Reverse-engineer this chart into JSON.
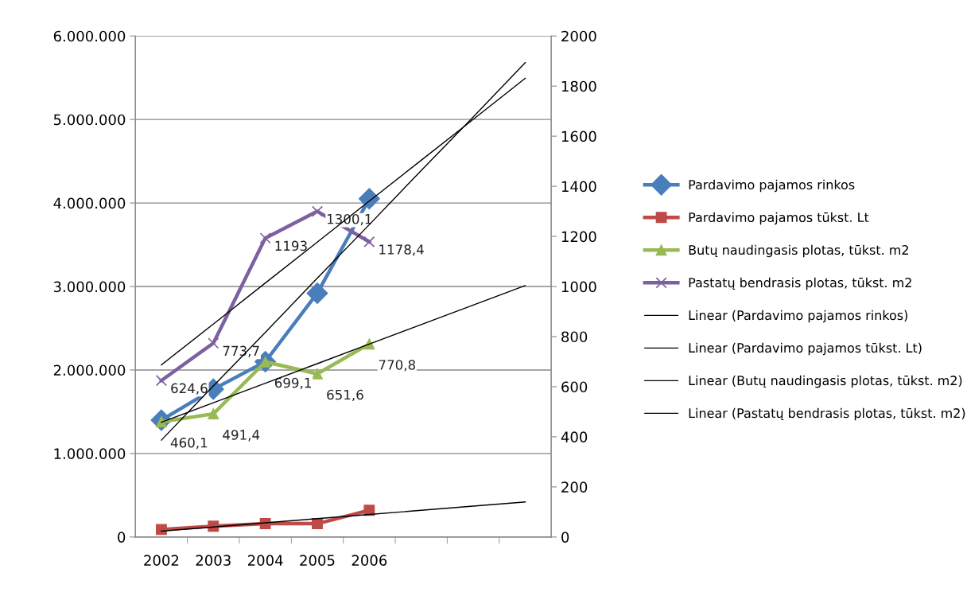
{
  "chart_data": {
    "type": "line",
    "categories": [
      "2002",
      "2003",
      "2004",
      "2005",
      "2006",
      null,
      null,
      null
    ],
    "ylim": [
      0,
      6000000
    ],
    "yticks": [
      {
        "value": 0,
        "label": "0"
      },
      {
        "value": 1000000,
        "label": "1.000.000"
      },
      {
        "value": 2000000,
        "label": "2.000.000"
      },
      {
        "value": 3000000,
        "label": "3.000.000"
      },
      {
        "value": 4000000,
        "label": "4.000.000"
      },
      {
        "value": 5000000,
        "label": "5.000.000"
      },
      {
        "value": 6000000,
        "label": "6.000.000"
      }
    ],
    "y2lim": [
      0,
      2000
    ],
    "y2ticks": [
      0,
      200,
      400,
      600,
      800,
      1000,
      1200,
      1400,
      1600,
      1800,
      2000
    ],
    "grid": "y",
    "legend": "right",
    "series": [
      {
        "name": "Pardavimo pajamos rinkos",
        "color": "#4a7ebb",
        "marker": "diamond",
        "values": [
          1400000,
          1770000,
          2100000,
          2920000,
          4050000,
          null,
          null,
          null
        ]
      },
      {
        "name": "Pardavimo pajamos tūkst. Lt",
        "color": "#be4b48",
        "marker": "square",
        "values": [
          90000,
          130000,
          160000,
          160000,
          320000,
          null,
          null,
          null
        ]
      },
      {
        "name": "Butų naudingasis plotas, tūkst. m2",
        "color": "#98b954",
        "marker": "triangle",
        "axis": "y2",
        "values": [
          460.1,
          491.4,
          699.1,
          651.6,
          770.8,
          null,
          null,
          null
        ],
        "value_labels": [
          "460,1",
          "491,4",
          "699,1",
          "651,6",
          "770,8",
          null,
          null,
          null
        ]
      },
      {
        "name": "Pastatų bendrasis plotas, tūkst. m2",
        "color": "#7d60a0",
        "marker": "cross",
        "axis": "y2",
        "values": [
          624.6,
          773.7,
          1193,
          1300.1,
          1178.4,
          null,
          null,
          null
        ],
        "value_labels": [
          "624,6",
          "773,7",
          "1193",
          "1300,1",
          "1178,4",
          null,
          null,
          null
        ]
      },
      {
        "name": "Linear (Pardavimo pajamos rinkos)",
        "color": "#000000",
        "marker": "none",
        "values": [
          1160000,
          1810000,
          2450000,
          3100000,
          3740000,
          4390000,
          5030000,
          5680000
        ]
      },
      {
        "name": "Linear (Pardavimo pajamos tūkst. Lt)",
        "color": "#000000",
        "marker": "none",
        "values": [
          70000,
          120000,
          170000,
          220000,
          270000,
          320000,
          370000,
          420000
        ]
      },
      {
        "name": "Linear (Butų naudingasis plotas, tūkst. m2)",
        "color": "#000000",
        "marker": "none",
        "axis": "y2",
        "values": [
          458,
          536,
          614,
          692,
          770,
          848,
          926,
          1004
        ]
      },
      {
        "name": "Linear (Pastatų bendrasis plotas, tūkst. m2)",
        "color": "#000000",
        "marker": "none",
        "axis": "y2",
        "values": [
          687,
          850,
          1014,
          1177,
          1341,
          1504,
          1667,
          1831
        ]
      }
    ]
  }
}
